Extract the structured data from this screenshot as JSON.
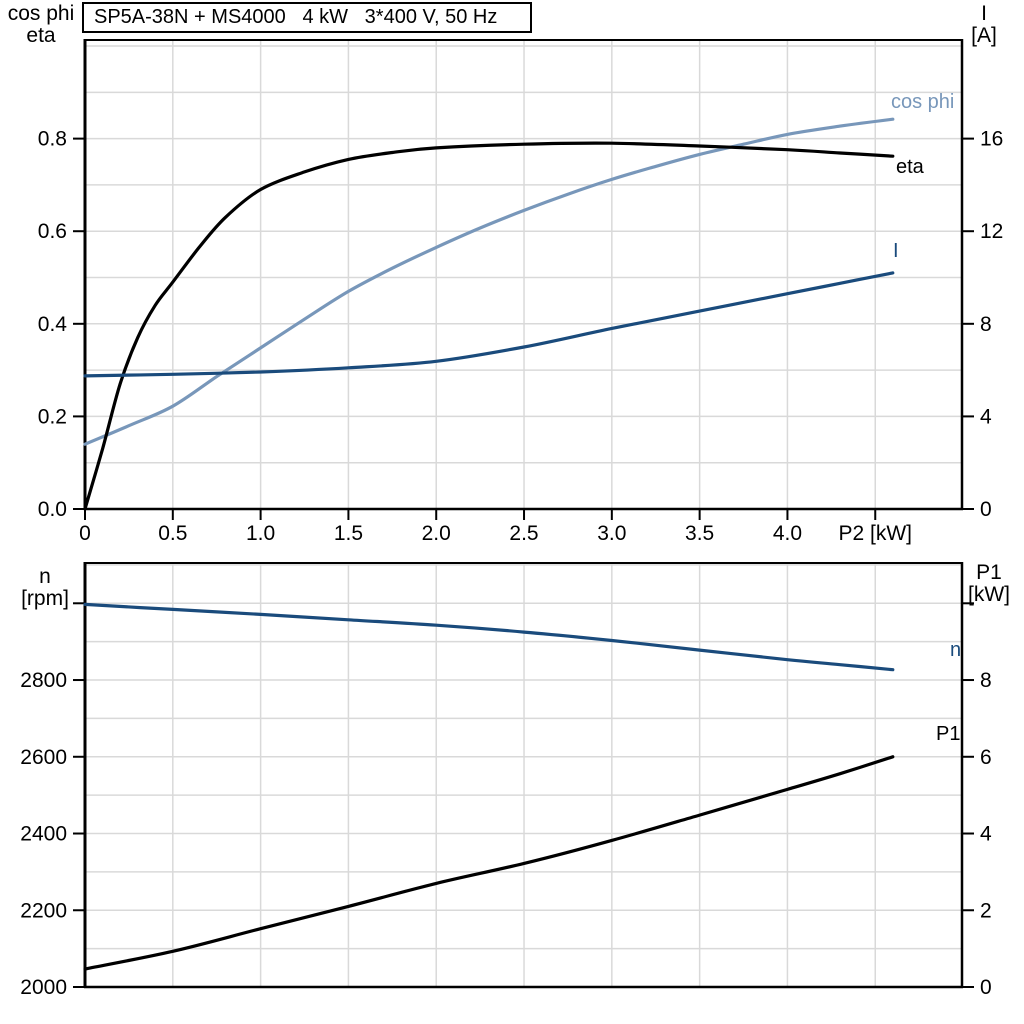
{
  "title": "SP5A-38N + MS4000   4 kW   3*400 V, 50 Hz",
  "headers": {
    "top_left": {
      "line1": "cos phi",
      "line2": "eta"
    },
    "top_right": {
      "line1": "I",
      "line2": "[A]"
    },
    "bottom_left": {
      "line1": "n",
      "line2": "[rpm]"
    },
    "bottom_right": {
      "line1": "P1",
      "line2": "[kW]"
    }
  },
  "colors": {
    "light_blue": "#7897BA",
    "dark_blue": "#1A4B7C",
    "curve_black": "#000000",
    "grid": "#D9D9D9",
    "frame": "#000000"
  },
  "chart_data": [
    {
      "id": "top",
      "type": "line",
      "title": "SP5A-38N + MS4000 motor curves: cos phi, eta and current I versus shaft power P2",
      "x_axis": {
        "label": "P2 [kW]",
        "min": 0,
        "max": 4.994,
        "grid_step": 0.5,
        "ticks": [
          {
            "v": 0,
            "label": "0"
          },
          {
            "v": 0.5,
            "label": "0.5"
          },
          {
            "v": 1,
            "label": "1.0"
          },
          {
            "v": 1.5,
            "label": "1.5"
          },
          {
            "v": 2,
            "label": "2.0"
          },
          {
            "v": 2.5,
            "label": "2.5"
          },
          {
            "v": 3,
            "label": "3.0"
          },
          {
            "v": 3.5,
            "label": "3.5"
          },
          {
            "v": 4,
            "label": "4.0"
          },
          {
            "v": 4.5,
            "label": "P2 [kW]"
          }
        ]
      },
      "y_left": {
        "title": "cos phi / eta",
        "min": 0,
        "max": 1.013,
        "grid_step": 0.1,
        "ticks": [
          {
            "v": 0,
            "label": "0.0"
          },
          {
            "v": 0.2,
            "label": "0.2"
          },
          {
            "v": 0.4,
            "label": "0.4"
          },
          {
            "v": 0.6,
            "label": "0.6"
          },
          {
            "v": 0.8,
            "label": "0.8"
          }
        ]
      },
      "y_right": {
        "title": "I [A]",
        "min": 0,
        "max": 20.26,
        "ticks": [
          {
            "v": 0,
            "label": "0"
          },
          {
            "v": 4,
            "label": "4"
          },
          {
            "v": 8,
            "label": "8"
          },
          {
            "v": 12,
            "label": "12"
          },
          {
            "v": 16,
            "label": "16"
          }
        ]
      },
      "series": [
        {
          "id": "cos-phi",
          "label": "cos phi",
          "axis": "left",
          "color_key": "light_blue",
          "points": [
            [
              0,
              0.14
            ],
            [
              0.25,
              0.18
            ],
            [
              0.5,
              0.222
            ],
            [
              0.75,
              0.286
            ],
            [
              1,
              0.348
            ],
            [
              1.25,
              0.41
            ],
            [
              1.5,
              0.47
            ],
            [
              1.75,
              0.52
            ],
            [
              2,
              0.565
            ],
            [
              2.25,
              0.607
            ],
            [
              2.5,
              0.645
            ],
            [
              2.75,
              0.68
            ],
            [
              3,
              0.712
            ],
            [
              3.25,
              0.74
            ],
            [
              3.5,
              0.766
            ],
            [
              3.75,
              0.788
            ],
            [
              4,
              0.809
            ],
            [
              4.3,
              0.827
            ],
            [
              4.6,
              0.842
            ]
          ]
        },
        {
          "id": "eta",
          "label": "eta",
          "axis": "left",
          "color_key": "curve_black",
          "points": [
            [
              0,
              0
            ],
            [
              0.1,
              0.13
            ],
            [
              0.2,
              0.27
            ],
            [
              0.3,
              0.37
            ],
            [
              0.4,
              0.44
            ],
            [
              0.5,
              0.49
            ],
            [
              0.65,
              0.565
            ],
            [
              0.8,
              0.63
            ],
            [
              1,
              0.69
            ],
            [
              1.25,
              0.728
            ],
            [
              1.5,
              0.755
            ],
            [
              1.75,
              0.77
            ],
            [
              2,
              0.78
            ],
            [
              2.5,
              0.788
            ],
            [
              3,
              0.79
            ],
            [
              3.5,
              0.784
            ],
            [
              4,
              0.776
            ],
            [
              4.3,
              0.769
            ],
            [
              4.6,
              0.762
            ]
          ]
        },
        {
          "id": "current",
          "label": "I",
          "axis": "right",
          "color_key": "dark_blue",
          "points": [
            [
              0,
              5.75
            ],
            [
              0.5,
              5.82
            ],
            [
              1,
              5.92
            ],
            [
              1.5,
              6.1
            ],
            [
              2,
              6.38
            ],
            [
              2.5,
              7.0
            ],
            [
              3,
              7.8
            ],
            [
              3.5,
              8.55
            ],
            [
              4,
              9.3
            ],
            [
              4.3,
              9.75
            ],
            [
              4.6,
              10.2
            ]
          ]
        }
      ]
    },
    {
      "id": "bottom",
      "type": "line",
      "title": "Speed n and input power P1 versus shaft power P2",
      "x_axis": {
        "label": "",
        "min": 0,
        "max": 4.994,
        "grid_step": 0.5,
        "ticks": []
      },
      "y_left": {
        "title": "n [rpm]",
        "min": 2000,
        "max": 3105,
        "grid_step": 100,
        "ticks": [
          {
            "v": 2000,
            "label": "2000"
          },
          {
            "v": 2200,
            "label": "2200"
          },
          {
            "v": 2400,
            "label": "2400"
          },
          {
            "v": 2600,
            "label": "2600"
          },
          {
            "v": 2800,
            "label": "2800"
          },
          {
            "v": 3000,
            "label": ""
          }
        ]
      },
      "y_right": {
        "title": "P1 [kW]",
        "min": 0,
        "max": 11.05,
        "ticks": [
          {
            "v": 0,
            "label": "0"
          },
          {
            "v": 2,
            "label": "2"
          },
          {
            "v": 4,
            "label": "4"
          },
          {
            "v": 6,
            "label": "6"
          },
          {
            "v": 8,
            "label": "8"
          },
          {
            "v": 10,
            "label": ""
          }
        ]
      },
      "series": [
        {
          "id": "speed",
          "label": "n",
          "axis": "left",
          "color_key": "dark_blue",
          "points": [
            [
              0,
              2997
            ],
            [
              0.5,
              2984
            ],
            [
              1,
              2971
            ],
            [
              1.5,
              2957
            ],
            [
              2,
              2943
            ],
            [
              2.5,
              2925
            ],
            [
              3,
              2903
            ],
            [
              3.5,
              2878
            ],
            [
              4,
              2853
            ],
            [
              4.3,
              2840
            ],
            [
              4.6,
              2827
            ]
          ]
        },
        {
          "id": "p1",
          "label": "P1",
          "axis": "right",
          "color_key": "curve_black",
          "points": [
            [
              0,
              0.47
            ],
            [
              0.5,
              0.93
            ],
            [
              1,
              1.52
            ],
            [
              1.5,
              2.1
            ],
            [
              2,
              2.7
            ],
            [
              2.5,
              3.22
            ],
            [
              3,
              3.82
            ],
            [
              3.5,
              4.48
            ],
            [
              4,
              5.15
            ],
            [
              4.3,
              5.56
            ],
            [
              4.6,
              6.0
            ]
          ]
        }
      ]
    }
  ]
}
